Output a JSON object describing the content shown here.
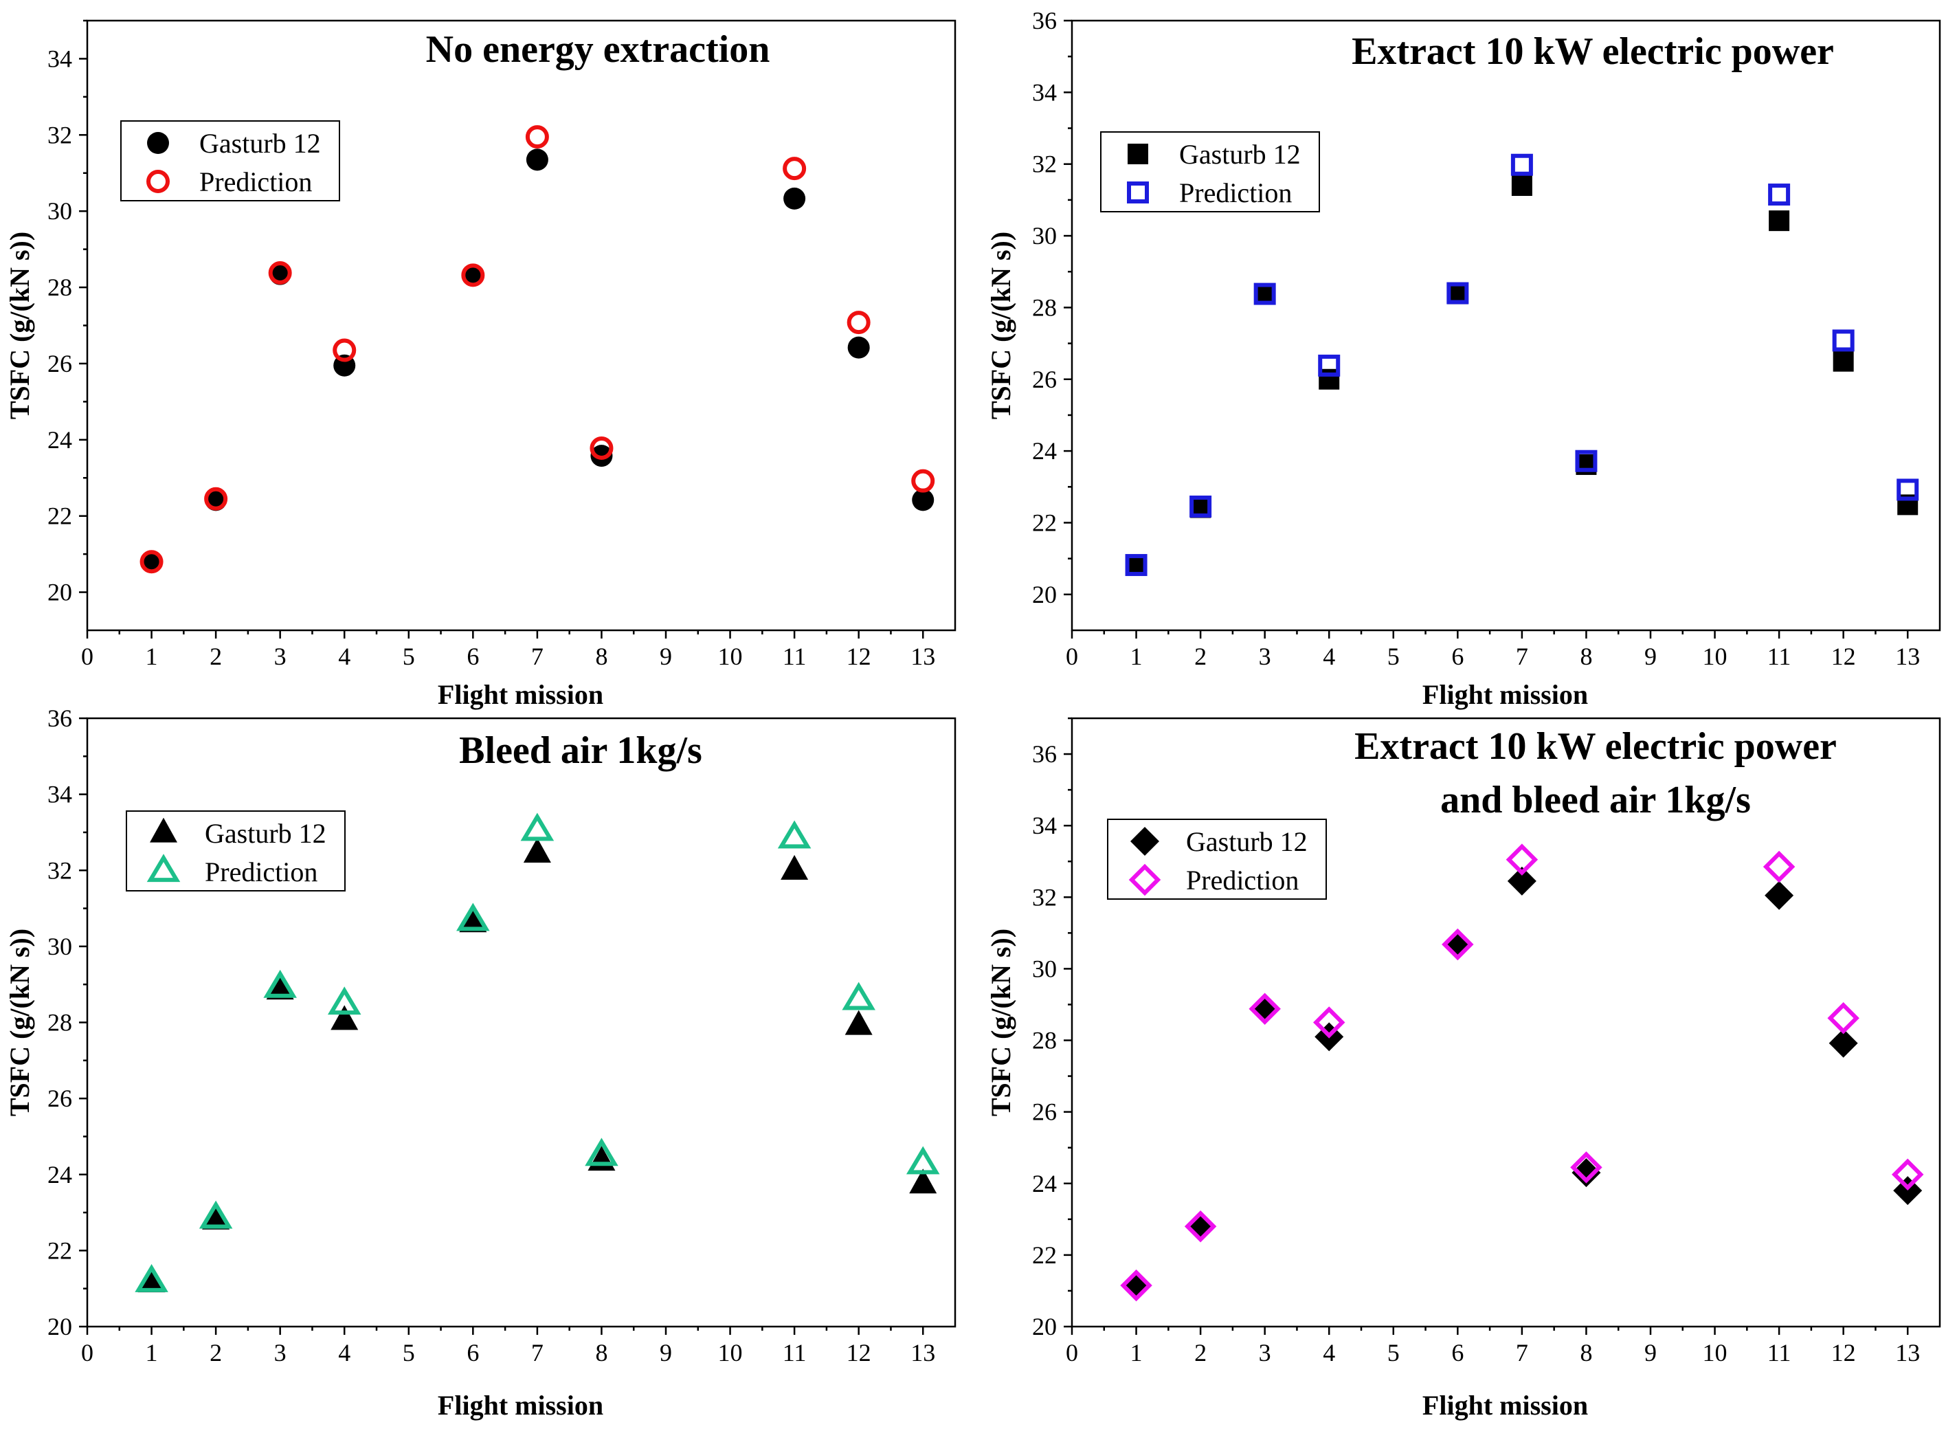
{
  "chart_data": [
    {
      "type": "scatter",
      "title": [
        "No energy extraction"
      ],
      "xlabel": "Flight mission",
      "ylabel": "TSFC  (g/(kN s))",
      "xlim": [
        0,
        13.5
      ],
      "ylim": [
        19,
        35
      ],
      "xticks": [
        0,
        1,
        2,
        3,
        4,
        5,
        6,
        7,
        8,
        9,
        10,
        11,
        12,
        13
      ],
      "yticks": [
        20,
        22,
        24,
        26,
        28,
        30,
        32,
        34
      ],
      "legend": "top-left",
      "marker": "circle",
      "series": [
        {
          "name": "Gasturb 12",
          "color": "#000000",
          "filled": true,
          "x": [
            1,
            2,
            3,
            4,
            6,
            7,
            8,
            11,
            12,
            13
          ],
          "y": [
            20.8,
            22.42,
            28.35,
            25.95,
            28.32,
            31.35,
            23.58,
            30.33,
            26.42,
            22.42
          ]
        },
        {
          "name": "Prediction",
          "color": "#ee1111",
          "filled": false,
          "x": [
            1,
            2,
            3,
            4,
            6,
            7,
            8,
            11,
            12,
            13
          ],
          "y": [
            20.8,
            22.45,
            28.38,
            26.35,
            28.32,
            31.95,
            23.78,
            31.12,
            27.08,
            22.92
          ]
        }
      ]
    },
    {
      "type": "scatter",
      "title": [
        "Extract 10 kW electric power"
      ],
      "xlabel": "Flight mission",
      "ylabel": "TSFC  (g/(kN s))",
      "xlim": [
        0,
        13.5
      ],
      "ylim": [
        19,
        36
      ],
      "xticks": [
        0,
        1,
        2,
        3,
        4,
        5,
        6,
        7,
        8,
        9,
        10,
        11,
        12,
        13
      ],
      "yticks": [
        20,
        22,
        24,
        26,
        28,
        30,
        32,
        34,
        36
      ],
      "legend": "top-left",
      "marker": "square",
      "series": [
        {
          "name": "Gasturb 12",
          "color": "#000000",
          "filled": true,
          "x": [
            1,
            2,
            3,
            4,
            6,
            7,
            8,
            11,
            12,
            13
          ],
          "y": [
            20.82,
            22.42,
            28.38,
            26.0,
            28.38,
            31.4,
            23.62,
            30.42,
            26.5,
            22.5
          ]
        },
        {
          "name": "Prediction",
          "color": "#1c1cdd",
          "filled": false,
          "x": [
            1,
            2,
            3,
            4,
            6,
            7,
            8,
            11,
            12,
            13
          ],
          "y": [
            20.82,
            22.45,
            28.38,
            26.38,
            28.4,
            31.98,
            23.72,
            31.15,
            27.08,
            22.92
          ]
        }
      ]
    },
    {
      "type": "scatter",
      "title": [
        "Bleed air 1kg/s"
      ],
      "xlabel": "Flight mission",
      "ylabel": "TSFC  (g/(kN s))",
      "xlim": [
        0,
        13.5
      ],
      "ylim": [
        20,
        36
      ],
      "xticks": [
        0,
        1,
        2,
        3,
        4,
        5,
        6,
        7,
        8,
        9,
        10,
        11,
        12,
        13
      ],
      "yticks": [
        20,
        22,
        24,
        26,
        28,
        30,
        32,
        34,
        36
      ],
      "legend": "top-left",
      "marker": "triangle",
      "series": [
        {
          "name": "Gasturb 12",
          "color": "#000000",
          "filled": true,
          "x": [
            1,
            2,
            3,
            4,
            6,
            7,
            8,
            11,
            12,
            13
          ],
          "y": [
            21.15,
            22.8,
            28.85,
            28.05,
            30.62,
            32.45,
            24.35,
            32.0,
            27.92,
            23.75
          ]
        },
        {
          "name": "Prediction",
          "color": "#1dbf8a",
          "filled": false,
          "x": [
            1,
            2,
            3,
            4,
            6,
            7,
            8,
            11,
            12,
            13
          ],
          "y": [
            21.18,
            22.85,
            28.92,
            28.48,
            30.68,
            33.05,
            24.5,
            32.85,
            28.6,
            24.28
          ]
        }
      ]
    },
    {
      "type": "scatter",
      "title": [
        "Extract 10 kW electric power",
        "and bleed air 1kg/s"
      ],
      "xlabel": "Flight mission",
      "ylabel": "TSFC  (g/(kN s))",
      "xlim": [
        0,
        13.5
      ],
      "ylim": [
        20,
        37
      ],
      "xticks": [
        0,
        1,
        2,
        3,
        4,
        5,
        6,
        7,
        8,
        9,
        10,
        11,
        12,
        13
      ],
      "yticks": [
        20,
        22,
        24,
        26,
        28,
        30,
        32,
        34,
        36
      ],
      "legend": "top-left",
      "marker": "diamond",
      "series": [
        {
          "name": "Gasturb 12",
          "color": "#000000",
          "filled": true,
          "x": [
            1,
            2,
            3,
            4,
            6,
            7,
            8,
            11,
            12,
            13
          ],
          "y": [
            21.12,
            22.8,
            28.88,
            28.1,
            30.65,
            32.45,
            24.3,
            32.05,
            27.92,
            23.8
          ]
        },
        {
          "name": "Prediction",
          "color": "#ee11ee",
          "filled": false,
          "x": [
            1,
            2,
            3,
            4,
            6,
            7,
            8,
            11,
            12,
            13
          ],
          "y": [
            21.15,
            22.8,
            28.88,
            28.5,
            30.68,
            33.05,
            24.45,
            32.85,
            28.62,
            24.25
          ]
        }
      ]
    }
  ]
}
